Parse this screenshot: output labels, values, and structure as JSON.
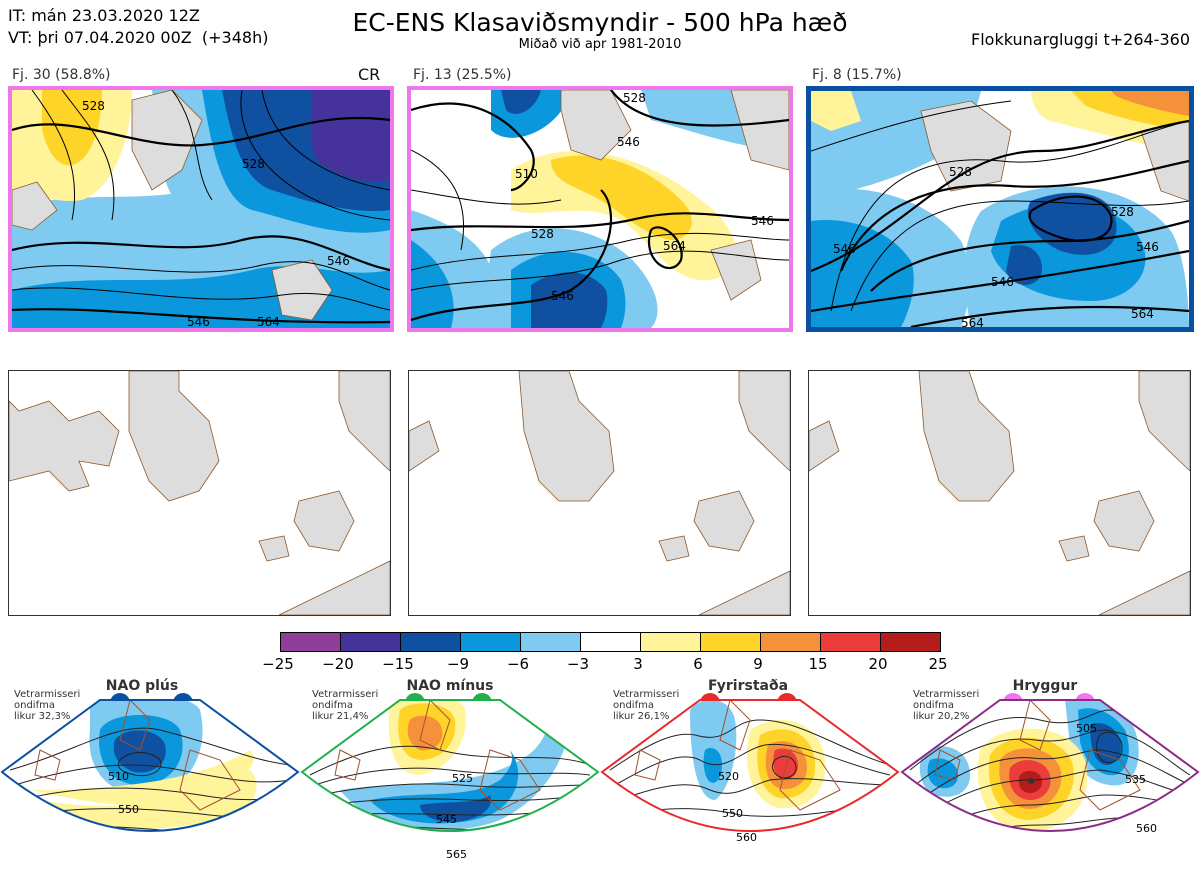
{
  "header": {
    "it_line": "IT: mán 23.03.2020 12Z",
    "vt_line": "VT: þri 07.04.2020 00Z  (+348h)",
    "title": "EC-ENS Klasaviðsmyndir - 500 hPa hæð",
    "subtitle": "Miðað við apr 1981-2010",
    "window": "Flokkunargluggi t+264-360"
  },
  "clusters": [
    {
      "label": "Fj. 30 (58.8%)",
      "tag": "CR",
      "border_color": "#ee77ee",
      "contour_labels": [
        "528",
        "528",
        "546",
        "546",
        "564"
      ]
    },
    {
      "label": "Fj. 13 (25.5%)",
      "tag": "",
      "border_color": "#ee77ee",
      "contour_labels": [
        "528",
        "546",
        "510",
        "528",
        "564",
        "546",
        "546"
      ]
    },
    {
      "label": "Fj. 8 (15.7%)",
      "tag": "",
      "border_color": "#0a50a0",
      "contour_labels": [
        "546",
        "528",
        "528",
        "546",
        "546",
        "564",
        "564"
      ]
    }
  ],
  "colorbar": {
    "ticks": [
      "−25",
      "−20",
      "−15",
      "−9",
      "−6",
      "−3",
      "3",
      "6",
      "9",
      "15",
      "20",
      "25"
    ],
    "colors": [
      "#8f3f97",
      "#46329b",
      "#1050a0",
      "#0a97dc",
      "#7fcaf0",
      "#ffffff",
      "#fff499",
      "#fed428",
      "#f6913b",
      "#ec3c3c",
      "#b51c1c"
    ]
  },
  "regimes": [
    {
      "name": "NAO plús",
      "note": "Vetrarmisseri\nondifma\nlikur 32,3%",
      "color": "#0a50a0",
      "contour_labels": [
        "510",
        "550"
      ]
    },
    {
      "name": "NAO mínus",
      "note": "Vetrarmisseri\nondifma\nlikur 21,4%",
      "color": "#22b04c",
      "contour_labels": [
        "525",
        "545",
        "565"
      ]
    },
    {
      "name": "Fyrirstaða",
      "note": "Vetrarmisseri\nondifma\nlikur 26,1%",
      "color": "#e82a2a",
      "contour_labels": [
        "520",
        "550",
        "560"
      ]
    },
    {
      "name": "Hryggur",
      "note": "Vetrarmisseri\nondifma\nlikur 20,2%",
      "color": "#ee77ee",
      "contour_labels": [
        "505",
        "535",
        "560"
      ]
    }
  ]
}
